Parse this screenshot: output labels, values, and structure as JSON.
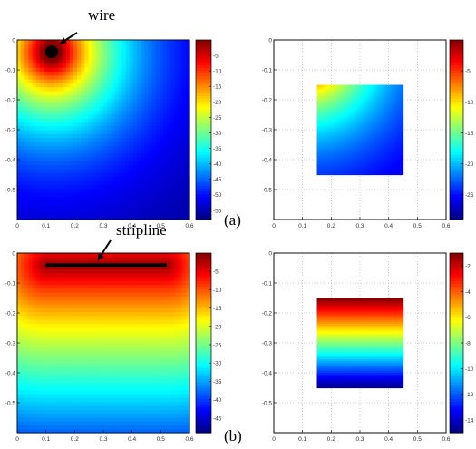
{
  "chart_data": [
    {
      "id": "a-left",
      "type": "heatmap",
      "xlim": [
        0,
        0.6
      ],
      "ylim": [
        -0.6,
        0
      ],
      "x_ticks": [
        0,
        0.1,
        0.2,
        0.3,
        0.4,
        0.5,
        0.6
      ],
      "y_ticks": [
        0,
        -0.1,
        -0.2,
        -0.3,
        -0.4,
        -0.5
      ],
      "grid": false,
      "colorbar": {
        "min": -58,
        "max": 0,
        "ticks": [
          -5,
          -10,
          -15,
          -20,
          -25,
          -30,
          -35,
          -40,
          -45,
          -50,
          -55
        ]
      },
      "field": {
        "kind": "wire",
        "source": [
          0.12,
          -0.04
        ],
        "radius": 0.012
      },
      "annotation": {
        "text": "wire",
        "arrow_to": [
          0.12,
          -0.04
        ]
      }
    },
    {
      "id": "a-right",
      "type": "heatmap",
      "xlim": [
        0,
        0.6
      ],
      "ylim": [
        -0.6,
        0
      ],
      "x_ticks": [
        0,
        0.1,
        0.2,
        0.3,
        0.4,
        0.5,
        0.6
      ],
      "y_ticks": [
        0,
        -0.1,
        -0.2,
        -0.3,
        -0.4,
        -0.5
      ],
      "grid": true,
      "region": {
        "x": [
          0.15,
          0.45
        ],
        "y": [
          -0.45,
          -0.15
        ]
      },
      "colorbar": {
        "min": -29,
        "max": 0,
        "ticks": [
          -5,
          -10,
          -15,
          -20,
          -25
        ]
      },
      "field": {
        "kind": "wire",
        "source": [
          0.12,
          -0.04
        ]
      }
    },
    {
      "id": "b-left",
      "type": "heatmap",
      "xlim": [
        0,
        0.6
      ],
      "ylim": [
        -0.6,
        0
      ],
      "x_ticks": [
        0,
        0.1,
        0.2,
        0.3,
        0.4,
        0.5,
        0.6
      ],
      "y_ticks": [
        0,
        -0.1,
        -0.2,
        -0.3,
        -0.4,
        -0.5
      ],
      "grid": false,
      "colorbar": {
        "min": -49,
        "max": 0,
        "ticks": [
          -5,
          -10,
          -15,
          -20,
          -25,
          -30,
          -35,
          -40,
          -45
        ]
      },
      "field": {
        "kind": "stripline",
        "x_range": [
          0.1,
          0.52
        ],
        "y": -0.04
      },
      "annotation": {
        "text": "stripline",
        "arrow_to": [
          0.28,
          -0.04
        ]
      }
    },
    {
      "id": "b-right",
      "type": "heatmap",
      "xlim": [
        0,
        0.6
      ],
      "ylim": [
        -0.6,
        0
      ],
      "x_ticks": [
        0,
        0.1,
        0.2,
        0.3,
        0.4,
        0.5,
        0.6
      ],
      "y_ticks": [
        0,
        -0.1,
        -0.2,
        -0.3,
        -0.4,
        -0.5
      ],
      "grid": true,
      "region": {
        "x": [
          0.15,
          0.45
        ],
        "y": [
          -0.45,
          -0.15
        ]
      },
      "colorbar": {
        "min": -15,
        "max": -1,
        "ticks": [
          -2,
          -4,
          -6,
          -8,
          -10,
          -12,
          -14
        ]
      },
      "field": {
        "kind": "vertical"
      }
    }
  ],
  "subfigure_labels": {
    "a": "(a)",
    "b": "(b)"
  },
  "colormap": "jet"
}
